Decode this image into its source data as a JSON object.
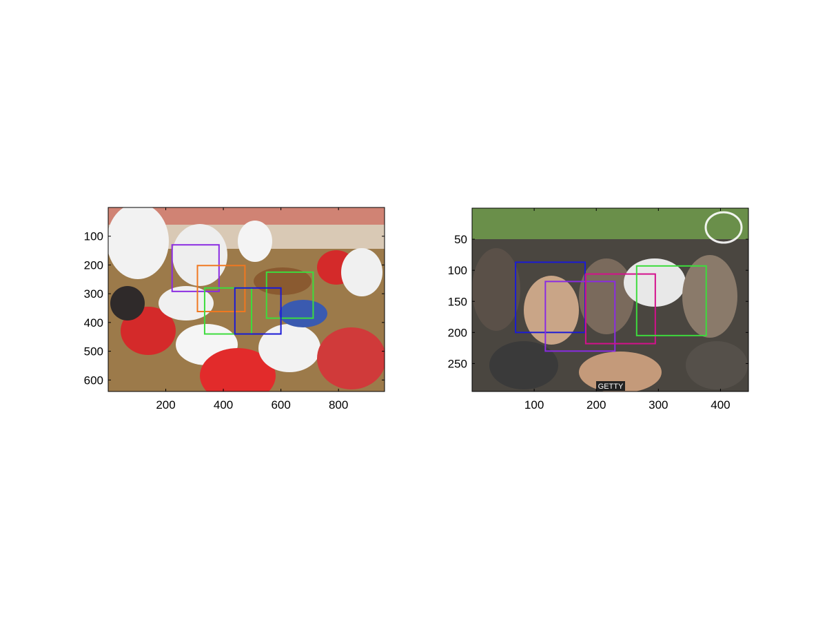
{
  "chart_data": [
    {
      "type": "image-with-boxes",
      "image_description_tag": "photo",
      "xlim": [
        0,
        960
      ],
      "ylim": [
        640,
        0
      ],
      "x_ticks": [
        200,
        400,
        600,
        800
      ],
      "y_ticks": [
        100,
        200,
        300,
        400,
        500,
        600
      ],
      "boxes": [
        {
          "color": "#8a2be2",
          "x1": 222,
          "y1": 130,
          "x2": 385,
          "y2": 292
        },
        {
          "color": "#f07820",
          "x1": 310,
          "y1": 202,
          "x2": 475,
          "y2": 362
        },
        {
          "color": "#3ddc3d",
          "x1": 550,
          "y1": 225,
          "x2": 712,
          "y2": 385
        },
        {
          "color": "#3ddc3d",
          "x1": 335,
          "y1": 280,
          "x2": 498,
          "y2": 440
        },
        {
          "color": "#1a1ad6",
          "x1": 440,
          "y1": 280,
          "x2": 600,
          "y2": 440
        }
      ]
    },
    {
      "type": "image-with-boxes",
      "image_description_tag": "photo",
      "xlim": [
        0,
        445
      ],
      "ylim": [
        295,
        0
      ],
      "x_ticks": [
        100,
        200,
        300,
        400
      ],
      "y_ticks": [
        50,
        100,
        150,
        200,
        250
      ],
      "boxes": [
        {
          "color": "#1a1ad6",
          "x1": 70,
          "y1": 87,
          "x2": 182,
          "y2": 200
        },
        {
          "color": "#8a2be2",
          "x1": 118,
          "y1": 118,
          "x2": 230,
          "y2": 230
        },
        {
          "color": "#d4108c",
          "x1": 183,
          "y1": 106,
          "x2": 295,
          "y2": 218
        },
        {
          "color": "#3ddc3d",
          "x1": 265,
          "y1": 93,
          "x2": 377,
          "y2": 205
        }
      ],
      "watermark_text": "GETTY"
    }
  ],
  "colors": {
    "dirt": "#9c7a4a",
    "red_shirt": "#d42a2a",
    "white_shirt": "#f2f2f2",
    "crowd_dark": "#3b3a36",
    "grass": "#6a8f4a"
  }
}
